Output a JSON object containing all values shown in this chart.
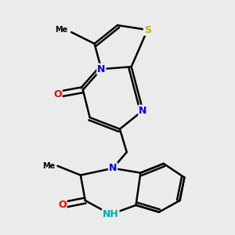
{
  "background_color": "#ebebeb",
  "atom_colors": {
    "S": "#b8b800",
    "N": "#0000ff",
    "O": "#ff0000",
    "C": "#000000",
    "NH": "#00aaaa"
  },
  "bond_color": "#000000",
  "bond_width": 1.8,
  "dbo": 0.12,
  "figsize": [
    3.0,
    3.0
  ],
  "dpi": 100
}
